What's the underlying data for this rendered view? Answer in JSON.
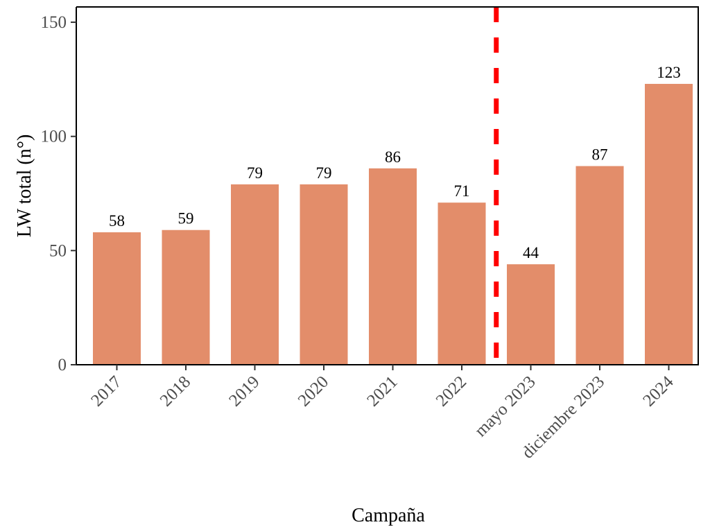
{
  "chart_data": {
    "type": "bar",
    "title": "",
    "xlabel": "Campaña",
    "ylabel": "LW total (n°)",
    "categories": [
      "2017",
      "2018",
      "2019",
      "2020",
      "2021",
      "2022",
      "mayo 2023",
      "diciembre 2023",
      "2024"
    ],
    "values": [
      58,
      59,
      79,
      79,
      86,
      71,
      44,
      87,
      123
    ],
    "data_labels": [
      "58",
      "59",
      "79",
      "79",
      "86",
      "71",
      "44",
      "87",
      "123"
    ],
    "ylim": [
      0,
      157
    ],
    "yticks": [
      0,
      50,
      100,
      150
    ],
    "ytick_labels": [
      "0",
      "50",
      "100",
      "150"
    ],
    "grid": false,
    "bar_color": "#e38d6a",
    "reference_line": {
      "between_categories": [
        "2022",
        "mayo 2023"
      ],
      "style": "dashed",
      "color": "#ff0000"
    }
  }
}
